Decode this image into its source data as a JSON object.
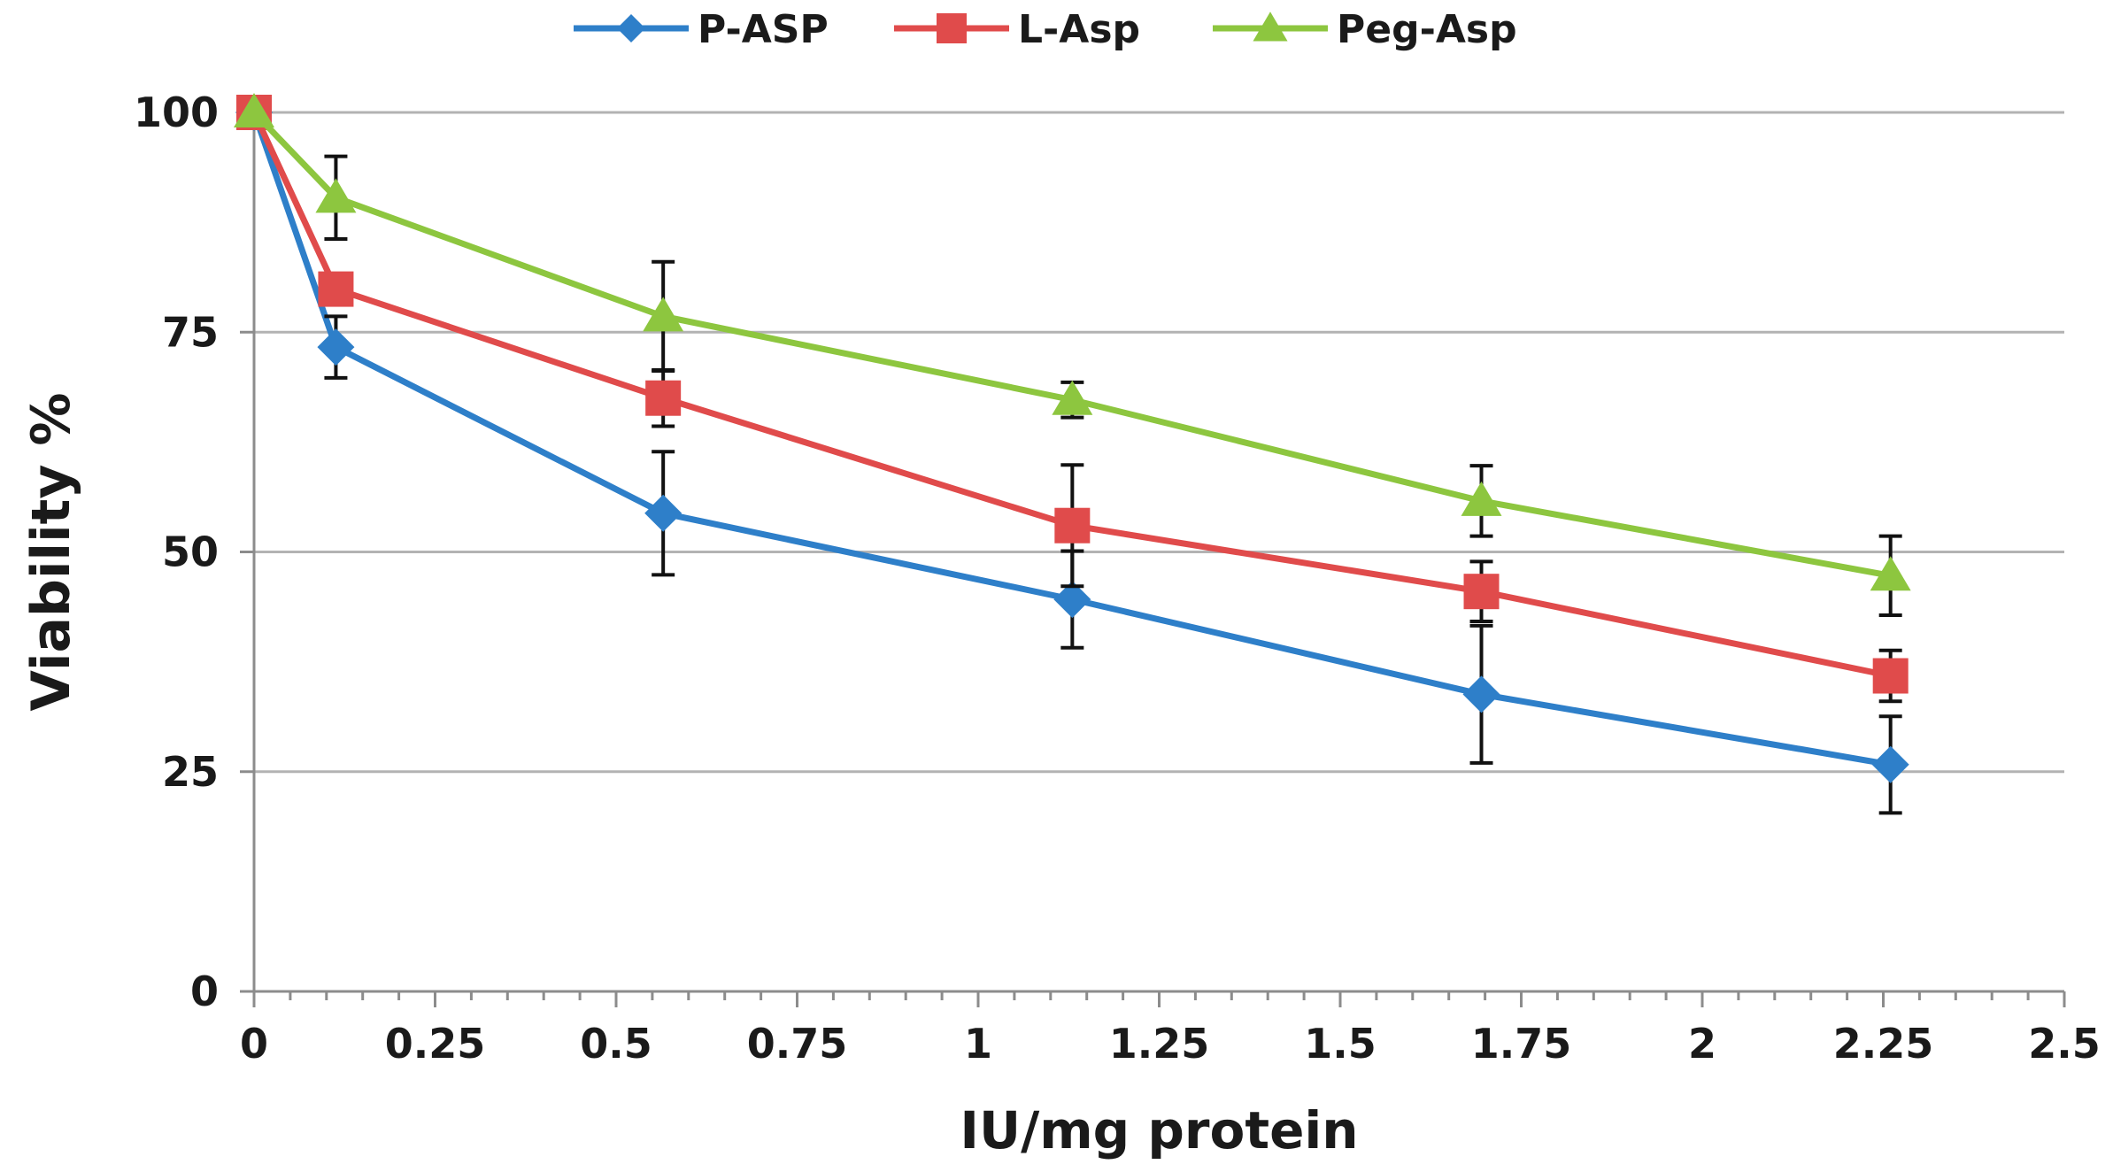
{
  "chart_data": {
    "type": "line",
    "xlabel": "IU/mg protein",
    "ylabel": "Viability %",
    "xlim": [
      0,
      2.5
    ],
    "ylim": [
      0,
      100
    ],
    "x_ticks": [
      "0",
      "0.25",
      "0.5",
      "0.75",
      "1",
      "1.25",
      "1.5",
      "1.75",
      "2",
      "2.25",
      "2.5"
    ],
    "y_ticks": [
      "0",
      "25",
      "50",
      "75",
      "100"
    ],
    "grid": "horizontal",
    "legend_position": "top",
    "series": [
      {
        "name": "P-ASP",
        "color": "#2e7fc9",
        "marker": "diamond",
        "x": [
          0,
          0.113,
          0.565,
          1.13,
          1.695,
          2.26
        ],
        "y": [
          100,
          73.3,
          54.4,
          44.6,
          33.8,
          25.8
        ],
        "err": [
          0,
          3.5,
          7.0,
          5.5,
          7.8,
          5.5
        ]
      },
      {
        "name": "L-Asp",
        "color": "#e04b4b",
        "marker": "square",
        "x": [
          0,
          0.113,
          0.565,
          1.13,
          1.695,
          2.26
        ],
        "y": [
          100,
          79.9,
          67.5,
          53.0,
          45.5,
          35.9
        ],
        "err": [
          0,
          1.5,
          3.2,
          6.9,
          3.4,
          2.9
        ]
      },
      {
        "name": "Peg-Asp",
        "color": "#8dc63f",
        "marker": "triangle",
        "x": [
          0,
          0.113,
          0.565,
          1.13,
          1.695,
          2.26
        ],
        "y": [
          100,
          90.3,
          76.8,
          67.3,
          55.8,
          47.3
        ],
        "err": [
          0,
          4.7,
          6.2,
          2.0,
          4.0,
          4.5
        ]
      }
    ]
  }
}
